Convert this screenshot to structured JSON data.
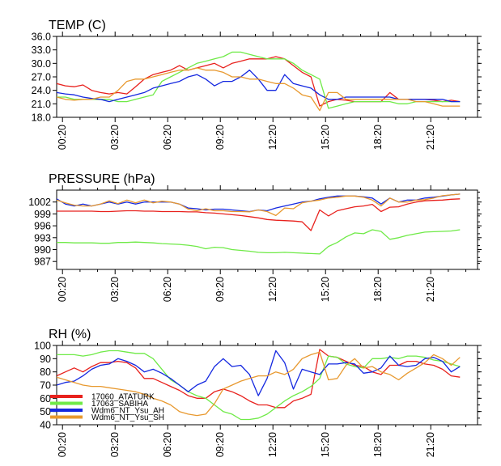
{
  "colors": {
    "ATATURK": "#e8211d",
    "SABIHA": "#6fea47",
    "AH": "#1428e0",
    "SH": "#e8992f"
  },
  "chart_data": [
    {
      "type": "line",
      "title": "TEMP (C)",
      "x_unit": "hours from 00:00 (ticks every 3 h)",
      "xlim": [
        0,
        24
      ],
      "ylim": [
        18,
        36
      ],
      "yticks": [
        "36.0",
        "33.0",
        "30.0",
        "27.0",
        "24.0",
        "21.0",
        "18.0"
      ],
      "ytick_values": [
        36,
        33,
        30,
        27,
        24,
        21,
        18
      ],
      "xticks": [
        "00:20",
        "03:20",
        "06:20",
        "09:20",
        "12:20",
        "15:20",
        "18:20",
        "21:20"
      ],
      "xtick_values": [
        0.333,
        3.333,
        6.333,
        9.333,
        12.333,
        15.333,
        18.333,
        21.333
      ],
      "x": [
        0.0,
        0.5,
        1.0,
        1.5,
        2.0,
        2.5,
        3.0,
        3.5,
        4.0,
        4.5,
        5.0,
        5.5,
        6.0,
        6.5,
        7.0,
        7.5,
        8.0,
        8.5,
        9.0,
        9.5,
        10.0,
        10.5,
        11.0,
        11.5,
        12.0,
        12.5,
        13.0,
        13.5,
        14.0,
        14.5,
        15.0,
        15.5,
        16.0,
        16.5,
        17.0,
        17.5,
        18.0,
        18.5,
        19.0,
        19.5,
        20.0,
        20.5,
        21.0,
        21.5,
        22.0,
        22.5,
        23.0
      ],
      "series": [
        {
          "name": "17060_ATATURK",
          "color_key": "ATATURK",
          "values": [
            25.5,
            25.0,
            24.8,
            25.2,
            24.0,
            23.5,
            23.2,
            23.5,
            23.2,
            24.8,
            26.5,
            27.5,
            28.0,
            28.5,
            29.5,
            28.5,
            29.0,
            29.5,
            30.0,
            29.0,
            30.0,
            30.5,
            31.0,
            31.0,
            31.0,
            31.5,
            31.0,
            29.5,
            28.0,
            27.0,
            20.5,
            21.5,
            22.0,
            21.8,
            21.5,
            21.5,
            21.5,
            21.5,
            23.5,
            22.0,
            22.0,
            22.0,
            22.0,
            21.8,
            21.5,
            21.8,
            21.5
          ]
        },
        {
          "name": "17063_SABIHA",
          "color_key": "SABIHA",
          "values": [
            22.5,
            22.5,
            22.0,
            22.0,
            22.0,
            22.0,
            22.0,
            21.5,
            21.5,
            22.0,
            22.5,
            23.0,
            26.0,
            27.0,
            28.0,
            29.0,
            30.0,
            30.5,
            31.0,
            31.5,
            32.5,
            32.5,
            32.0,
            31.5,
            31.0,
            31.0,
            31.0,
            30.0,
            28.5,
            27.5,
            26.5,
            20.0,
            20.5,
            21.0,
            21.5,
            21.5,
            21.5,
            21.5,
            21.5,
            21.0,
            21.0,
            21.5,
            21.5,
            21.5,
            21.5,
            21.5,
            21.5
          ]
        },
        {
          "name": "Wdm6_NT_Ysu_AH",
          "color_key": "AH",
          "values": [
            23.5,
            23.2,
            23.0,
            22.5,
            22.2,
            22.0,
            21.5,
            22.0,
            22.5,
            23.0,
            23.5,
            24.5,
            25.0,
            25.5,
            26.0,
            27.0,
            27.5,
            26.5,
            25.0,
            26.0,
            26.0,
            27.0,
            28.5,
            26.5,
            24.0,
            24.0,
            27.5,
            25.5,
            25.0,
            24.5,
            23.0,
            22.0,
            22.0,
            22.5,
            22.5,
            22.5,
            22.5,
            22.5,
            22.5,
            22.0,
            22.0,
            22.0,
            22.0,
            22.0,
            22.0,
            21.5,
            21.5
          ]
        },
        {
          "name": "Wdm6_NT_Ysu_SH",
          "color_key": "SH",
          "values": [
            22.5,
            22.0,
            21.8,
            22.0,
            22.0,
            22.5,
            22.5,
            24.0,
            26.0,
            26.5,
            26.5,
            27.0,
            27.5,
            28.0,
            28.5,
            28.5,
            29.0,
            28.5,
            28.5,
            28.0,
            27.0,
            27.0,
            26.5,
            26.5,
            26.0,
            25.5,
            25.5,
            24.5,
            23.0,
            22.5,
            19.5,
            23.5,
            23.5,
            22.0,
            22.0,
            22.0,
            22.0,
            22.0,
            22.0,
            22.0,
            22.0,
            21.5,
            21.5,
            21.0,
            20.5,
            20.5,
            20.5
          ]
        }
      ]
    },
    {
      "type": "line",
      "title": "PRESSURE (hPa)",
      "x_unit": "hours from 00:00 (ticks every 3 h)",
      "xlim": [
        0,
        24
      ],
      "ylim": [
        985,
        1005
      ],
      "yticks": [
        "1002",
        "999",
        "996",
        "993",
        "990",
        "987"
      ],
      "ytick_values": [
        1002,
        999,
        996,
        993,
        990,
        987
      ],
      "xticks": [
        "00:20",
        "03:20",
        "06:20",
        "09:20",
        "12:20",
        "15:20",
        "18:20",
        "21:20"
      ],
      "xtick_values": [
        0.333,
        3.333,
        6.333,
        9.333,
        12.333,
        15.333,
        18.333,
        21.333
      ],
      "x": [
        0.0,
        0.5,
        1.0,
        1.5,
        2.0,
        2.5,
        3.0,
        3.5,
        4.0,
        4.5,
        5.0,
        5.5,
        6.0,
        6.5,
        7.0,
        7.5,
        8.0,
        8.5,
        9.0,
        9.5,
        10.0,
        10.5,
        11.0,
        11.5,
        12.0,
        12.5,
        13.0,
        13.5,
        14.0,
        14.5,
        15.0,
        15.5,
        16.0,
        16.5,
        17.0,
        17.5,
        18.0,
        18.5,
        19.0,
        19.5,
        20.0,
        20.5,
        21.0,
        21.5,
        22.0,
        22.5,
        23.0
      ],
      "series": [
        {
          "name": "17060_ATATURK",
          "color_key": "ATATURK",
          "values": [
            999.7,
            999.7,
            999.7,
            999.7,
            999.7,
            999.6,
            999.6,
            999.7,
            999.8,
            999.8,
            999.7,
            999.7,
            999.6,
            999.6,
            999.6,
            999.5,
            999.5,
            999.3,
            999.2,
            999.0,
            998.8,
            998.6,
            998.3,
            998.0,
            997.6,
            997.4,
            997.3,
            997.2,
            997.0,
            994.8,
            1000.0,
            998.5,
            999.8,
            1000.3,
            1000.8,
            1001.0,
            1001.4,
            999.6,
            1000.7,
            1000.8,
            1001.5,
            1002.0,
            1002.3,
            1002.4,
            1002.5,
            1002.7,
            1002.8
          ]
        },
        {
          "name": "17063_SABIHA",
          "color_key": "SABIHA",
          "values": [
            991.8,
            991.8,
            991.7,
            991.7,
            991.7,
            991.6,
            991.6,
            991.8,
            991.8,
            991.9,
            991.8,
            991.7,
            991.5,
            991.4,
            991.3,
            991.1,
            990.8,
            990.2,
            990.6,
            990.5,
            990.0,
            989.8,
            989.6,
            989.3,
            989.2,
            989.2,
            989.3,
            989.2,
            989.1,
            989.0,
            988.9,
            990.8,
            991.8,
            993.2,
            994.2,
            994.0,
            995.0,
            994.6,
            992.6,
            993.0,
            993.6,
            994.0,
            994.4,
            994.5,
            994.6,
            994.7,
            995.0
          ]
        },
        {
          "name": "Wdm6_NT_Ysu_AH",
          "color_key": "AH",
          "values": [
            1002.8,
            1001.5,
            1001.0,
            1001.5,
            1001.0,
            1001.5,
            1002.0,
            1001.5,
            1002.0,
            1001.5,
            1002.0,
            1002.0,
            1002.0,
            1002.0,
            1001.5,
            1000.5,
            1000.3,
            1000.0,
            1000.2,
            1000.2,
            1000.0,
            999.8,
            999.6,
            1000.0,
            999.8,
            1000.5,
            1001.0,
            1001.5,
            1002.0,
            1002.2,
            1002.8,
            1003.2,
            1003.5,
            1003.5,
            1003.5,
            1003.3,
            1003.0,
            1001.5,
            1003.0,
            1002.0,
            1002.5,
            1002.5,
            1003.0,
            1003.2,
            1003.5,
            1003.8,
            1004.0
          ]
        },
        {
          "name": "Wdm6_NT_Ysu_SH",
          "color_key": "SH",
          "values": [
            1002.5,
            1001.8,
            1001.2,
            1001.0,
            1001.0,
            1001.5,
            1002.3,
            1001.6,
            1002.5,
            1001.8,
            1002.5,
            1001.8,
            1002.2,
            1002.0,
            1001.5,
            1000.2,
            999.8,
            1000.3,
            999.8,
            999.8,
            999.6,
            999.6,
            999.5,
            1000.0,
            999.6,
            998.6,
            1000.5,
            1000.3,
            1001.8,
            1002.2,
            1002.5,
            1003.0,
            1003.2,
            1003.5,
            1003.5,
            1003.2,
            1002.5,
            1001.0,
            1003.0,
            1002.0,
            1002.0,
            1002.5,
            1002.6,
            1003.0,
            1003.6,
            1003.8,
            1004.0
          ]
        }
      ]
    },
    {
      "type": "line",
      "title": "RH (%)",
      "x_unit": "hours from 00:00 (ticks every 3 h)",
      "xlim": [
        0,
        24
      ],
      "ylim": [
        40,
        100
      ],
      "yticks": [
        "100",
        "90",
        "80",
        "70",
        "60",
        "50",
        "40"
      ],
      "ytick_values": [
        100,
        90,
        80,
        70,
        60,
        50,
        40
      ],
      "xticks": [
        "00:20",
        "03:20",
        "06:20",
        "09:20",
        "12:20",
        "15:20",
        "18:20",
        "21:20"
      ],
      "xtick_values": [
        0.333,
        3.333,
        6.333,
        9.333,
        12.333,
        15.333,
        18.333,
        21.333
      ],
      "x": [
        0.0,
        0.5,
        1.0,
        1.5,
        2.0,
        2.5,
        3.0,
        3.5,
        4.0,
        4.5,
        5.0,
        5.5,
        6.0,
        6.5,
        7.0,
        7.5,
        8.0,
        8.5,
        9.0,
        9.5,
        10.0,
        10.5,
        11.0,
        11.5,
        12.0,
        12.5,
        13.0,
        13.5,
        14.0,
        14.5,
        15.0,
        15.5,
        16.0,
        16.5,
        17.0,
        17.5,
        18.0,
        18.5,
        19.0,
        19.5,
        20.0,
        20.5,
        21.0,
        21.5,
        22.0,
        22.5,
        23.0
      ],
      "series": [
        {
          "name": "17060_ATATURK",
          "color_key": "ATATURK",
          "values": [
            77,
            80,
            83,
            80,
            84,
            87,
            87,
            88,
            87,
            83,
            75,
            75,
            72,
            69,
            66,
            62,
            60,
            60,
            65,
            67,
            65,
            62,
            58,
            55,
            55,
            53,
            53,
            58,
            60,
            63,
            97,
            92,
            91,
            88,
            85,
            84,
            80,
            78,
            85,
            85,
            88,
            88,
            86,
            85,
            82,
            77,
            76
          ]
        },
        {
          "name": "17063_SABIHA",
          "color_key": "SABIHA",
          "values": [
            93,
            93,
            93,
            92,
            93,
            95,
            96,
            96,
            95,
            94,
            94,
            90,
            82,
            74,
            70,
            65,
            62,
            60,
            55,
            50,
            48,
            44,
            44,
            45,
            48,
            53,
            58,
            62,
            65,
            69,
            75,
            92,
            91,
            86,
            84,
            83,
            90,
            90,
            91,
            90,
            92,
            92,
            91,
            89,
            88,
            86,
            84
          ]
        },
        {
          "name": "Wdm6_NT_Ysu_AH",
          "color_key": "AH",
          "values": [
            70,
            72,
            73,
            77,
            82,
            85,
            86,
            90,
            88,
            85,
            80,
            82,
            79,
            75,
            70,
            65,
            70,
            73,
            84,
            90,
            84,
            85,
            78,
            62,
            75,
            96,
            87,
            67,
            82,
            80,
            78,
            86,
            86,
            87,
            86,
            79,
            80,
            83,
            92,
            85,
            84,
            85,
            90,
            91,
            88,
            80,
            84
          ]
        },
        {
          "name": "Wdm6_NT_Ysu_SH",
          "color_key": "SH",
          "values": [
            76,
            74,
            72,
            70,
            69,
            69,
            68,
            67,
            66,
            65,
            63,
            60,
            58,
            55,
            50,
            48,
            47,
            48,
            56,
            67,
            70,
            73,
            75,
            77,
            77,
            80,
            78,
            82,
            90,
            93,
            95,
            74,
            75,
            85,
            90,
            83,
            84,
            80,
            78,
            74,
            79,
            83,
            87,
            93,
            90,
            85,
            91
          ]
        }
      ],
      "legend": {
        "placement": "lower-left",
        "entries": [
          "17060_ATATURK",
          "17063_SABIHA",
          "Wdm6_NT_Ysu_AH",
          "Wdm6_NT_Ysu_SH"
        ]
      }
    }
  ]
}
